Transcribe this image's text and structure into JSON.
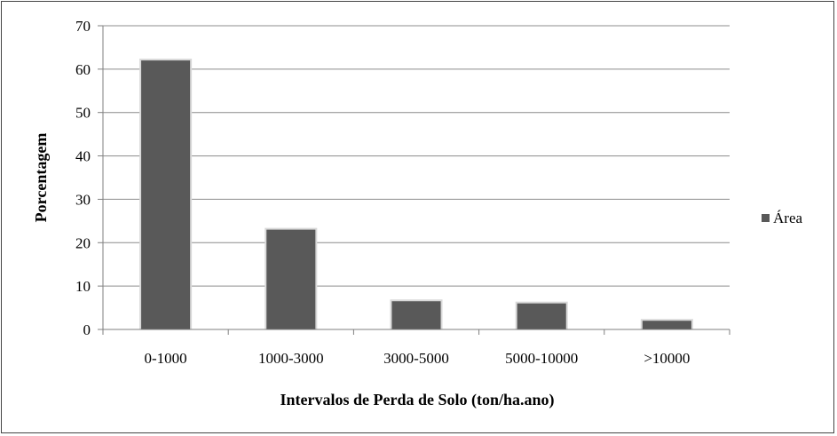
{
  "chart_data": {
    "type": "bar",
    "categories": [
      "0-1000",
      "1000-3000",
      "3000-5000",
      "5000-10000",
      ">10000"
    ],
    "series": [
      {
        "name": "Área",
        "values": [
          62,
          23,
          6.5,
          6,
          2
        ]
      }
    ],
    "xlabel": "Intervalos de Perda de Solo (ton/ha.ano)",
    "ylabel": "Porcentagem",
    "ylim": [
      0,
      70
    ],
    "yticks": [
      0,
      10,
      20,
      30,
      40,
      50,
      60,
      70
    ],
    "grid": true,
    "legend_position": "right",
    "colors": {
      "bar": "#595959",
      "bar_edge": "#d9d9d9",
      "grid": "#8c8c8c",
      "axis": "#7f7f7f"
    }
  }
}
